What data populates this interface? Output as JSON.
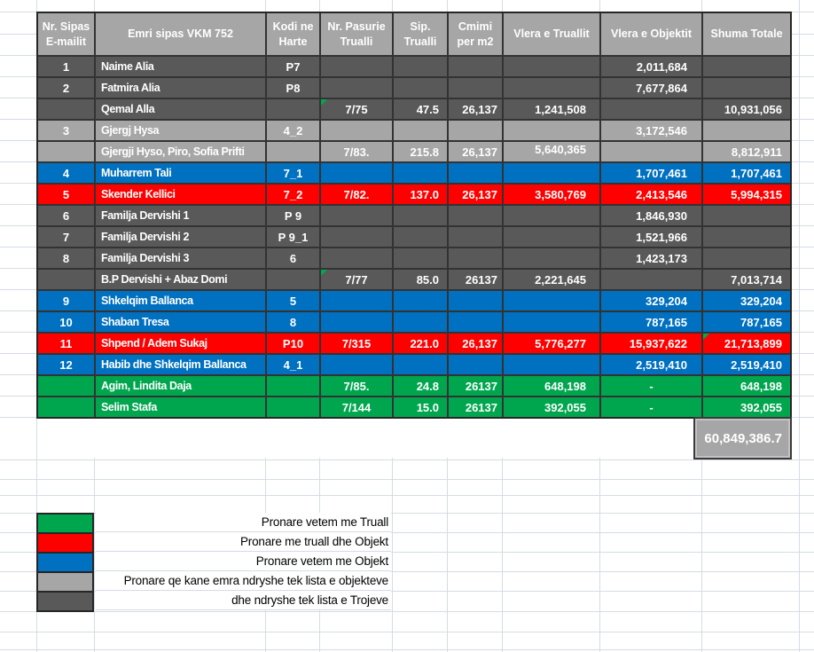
{
  "colors": {
    "row_dark": "#595959",
    "row_light": "#a6a6a6",
    "row_blue": "#0070c0",
    "row_red": "#fe0000",
    "row_green": "#00a64e",
    "header_bg": "#a6a6a6",
    "cell_border": "#333333",
    "table_text": "#ffffff",
    "legend_text": "#000000",
    "gridline": "#d5dce4",
    "total_bg": "#a6a6a6",
    "error_triangle": "#00a94f"
  },
  "table": {
    "headers": [
      "Nr. Sipas\nE-mailit",
      "Emri sipas VKM 752",
      "Kodi ne\nHarte",
      "Nr. Pasurie\nTrualli",
      "Sip.\nTrualli",
      "Cmimi\nper m2",
      "Vlera e Truallit",
      "Vlera e Objektit",
      "Shuma Totale"
    ],
    "rows": [
      {
        "color": "row_dark",
        "nr": "1",
        "name": "Naime Alia",
        "kodi": "P7",
        "pasurie": "",
        "sip": "",
        "cmimi": "",
        "vlera_truallit": "",
        "vlera_objektit": "2,011,684",
        "shuma": ""
      },
      {
        "color": "row_dark",
        "nr": "2",
        "name": "Fatmira Alia",
        "kodi": "P8",
        "pasurie": "",
        "sip": "",
        "cmimi": "",
        "vlera_truallit": "",
        "vlera_objektit": "7,677,864",
        "shuma": ""
      },
      {
        "color": "row_dark",
        "nr": "",
        "name": "Qemal Alla",
        "kodi": "",
        "pasurie": "7/75",
        "sip": "47.5",
        "cmimi": "26,137",
        "vlera_truallit": "1,241,508",
        "vlera_objektit": "",
        "shuma": "10,931,056",
        "triangles": [
          "pasurie"
        ]
      },
      {
        "color": "row_light",
        "nr": "3",
        "name": "Gjergj Hysa",
        "kodi": "4_2",
        "pasurie": "",
        "sip": "",
        "cmimi": "",
        "vlera_truallit": "",
        "vlera_objektit": "3,172,546",
        "shuma": ""
      },
      {
        "color": "row_light",
        "nr": "",
        "name": "Gjergji Hyso, Piro, Sofia Prifti",
        "kodi": "",
        "pasurie": "7/83.",
        "sip": "215.8",
        "cmimi": "26,137",
        "vlera_truallit": "5,640,365",
        "vlera_objektit": "",
        "shuma": "8,812,911",
        "top_cells": [
          "vlera_truallit"
        ]
      },
      {
        "color": "row_blue",
        "nr": "4",
        "name": "Muharrem Tali",
        "kodi": "7_1",
        "pasurie": "",
        "sip": "",
        "cmimi": "",
        "vlera_truallit": "",
        "vlera_objektit": "1,707,461",
        "shuma": "1,707,461"
      },
      {
        "color": "row_red",
        "nr": "5",
        "name": "Skender Kellici",
        "kodi": "7_2",
        "pasurie": "7/82.",
        "sip": "137.0",
        "cmimi": "26,137",
        "vlera_truallit": "3,580,769",
        "vlera_objektit": "2,413,546",
        "shuma": "5,994,315"
      },
      {
        "color": "row_dark",
        "nr": "6",
        "name": "Familja Dervishi 1",
        "kodi": "P 9",
        "pasurie": "",
        "sip": "",
        "cmimi": "",
        "vlera_truallit": "",
        "vlera_objektit": "1,846,930",
        "shuma": ""
      },
      {
        "color": "row_dark",
        "nr": "7",
        "name": "Familja Dervishi 2",
        "kodi": "P 9_1",
        "pasurie": "",
        "sip": "",
        "cmimi": "",
        "vlera_truallit": "",
        "vlera_objektit": "1,521,966",
        "shuma": ""
      },
      {
        "color": "row_dark",
        "nr": "8",
        "name": "Familja Dervishi 3",
        "kodi": "6",
        "pasurie": "",
        "sip": "",
        "cmimi": "",
        "vlera_truallit": "",
        "vlera_objektit": "1,423,173",
        "shuma": ""
      },
      {
        "color": "row_dark",
        "nr": "",
        "name": "B.P Dervishi + Abaz Domi",
        "kodi": "",
        "pasurie": "7/77",
        "sip": "85.0",
        "cmimi": "26137",
        "vlera_truallit": "2,221,645",
        "vlera_objektit": "",
        "shuma": "7,013,714",
        "triangles": [
          "pasurie"
        ]
      },
      {
        "color": "row_blue",
        "nr": "9",
        "name": "Shkelqim Ballanca",
        "kodi": "5",
        "pasurie": "",
        "sip": "",
        "cmimi": "",
        "vlera_truallit": "",
        "vlera_objektit": "329,204",
        "shuma": "329,204"
      },
      {
        "color": "row_blue",
        "nr": "10",
        "name": "Shaban Tresa",
        "kodi": "8",
        "pasurie": "",
        "sip": "",
        "cmimi": "",
        "vlera_truallit": "",
        "vlera_objektit": "787,165",
        "shuma": "787,165"
      },
      {
        "color": "row_red",
        "nr": "11",
        "name": "Shpend / Adem Sukaj",
        "kodi": "P10",
        "pasurie": "7/315",
        "sip": "221.0",
        "cmimi": "26,137",
        "vlera_truallit": "5,776,277",
        "vlera_objektit": "15,937,622",
        "shuma": "21,713,899",
        "triangles": [
          "shuma"
        ]
      },
      {
        "color": "row_blue",
        "nr": "12",
        "name": "Habib dhe Shkelqim Ballanca",
        "kodi": "4_1",
        "pasurie": "",
        "sip": "",
        "cmimi": "",
        "vlera_truallit": "",
        "vlera_objektit": "2,519,410",
        "shuma": "2,519,410"
      },
      {
        "color": "row_green",
        "nr": "",
        "name": "Agim, Lindita Daja",
        "kodi": "",
        "pasurie": "7/85.",
        "sip": "24.8",
        "cmimi": "26137",
        "vlera_truallit": "648,198",
        "vlera_objektit": "-",
        "shuma": "648,198"
      },
      {
        "color": "row_green",
        "nr": "",
        "name": "Selim Stafa",
        "kodi": "",
        "pasurie": "7/144",
        "sip": "15.0",
        "cmimi": "26137",
        "vlera_truallit": "392,055",
        "vlera_objektit": "-",
        "shuma": "392,055"
      }
    ],
    "total_label": "60,849,386.7"
  },
  "legend": {
    "items": [
      {
        "color": "row_green",
        "label": "Pronare vetem me Truall"
      },
      {
        "color": "row_red",
        "label": "Pronare me truall dhe Objekt"
      },
      {
        "color": "row_blue",
        "label": "Pronare vetem me Objekt"
      },
      {
        "color": "row_light",
        "label": "Pronare qe kane emra ndryshe tek lista e objekteve"
      },
      {
        "color": "row_dark",
        "label": "dhe ndryshe tek lista e Trojeve"
      }
    ]
  }
}
